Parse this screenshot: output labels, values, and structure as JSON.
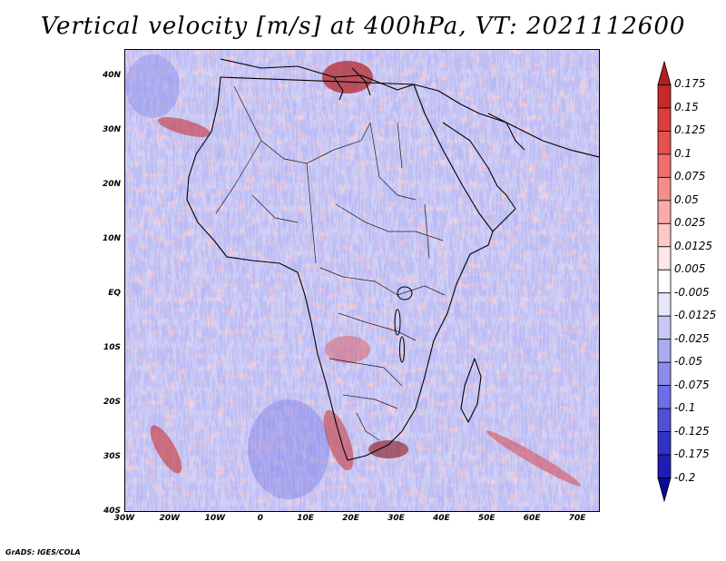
{
  "title": "Vertical velocity [m/s] at 400hPa, VT: 2021112600",
  "credit": "GrADS: IGES/COLA",
  "map": {
    "lat_labels": [
      "40N",
      "30N",
      "20N",
      "10N",
      "EQ",
      "10S",
      "20S",
      "30S",
      "40S"
    ],
    "lat_values": [
      40,
      30,
      20,
      10,
      0,
      -10,
      -20,
      -30,
      -40
    ],
    "lon_labels": [
      "30W",
      "20W",
      "10W",
      "0",
      "10E",
      "20E",
      "30E",
      "40E",
      "50E",
      "60E",
      "70E"
    ],
    "lon_values": [
      -30,
      -20,
      -10,
      0,
      10,
      20,
      30,
      40,
      50,
      60,
      70
    ],
    "lat_range": [
      -40,
      45
    ],
    "lon_range": [
      -30,
      75
    ]
  },
  "colorbar": {
    "labels": [
      "0.175",
      "0.15",
      "0.125",
      "0.1",
      "0.075",
      "0.05",
      "0.025",
      "0.0125",
      "0.005",
      "-0.005",
      "-0.0125",
      "-0.025",
      "-0.05",
      "-0.075",
      "-0.1",
      "-0.125",
      "-0.175",
      "-0.2"
    ],
    "colors": [
      "#b41e1e",
      "#c82828",
      "#dc3c3c",
      "#e65050",
      "#f06e6e",
      "#f58c8c",
      "#faaaaa",
      "#fcc8c8",
      "#fee6e6",
      "#ffffff",
      "#e6e6fa",
      "#c8c8f5",
      "#aaaaf0",
      "#8c8ceb",
      "#6e6ee6",
      "#5050d7",
      "#3232c8",
      "#1e1eb4",
      "#0a0a96"
    ]
  }
}
